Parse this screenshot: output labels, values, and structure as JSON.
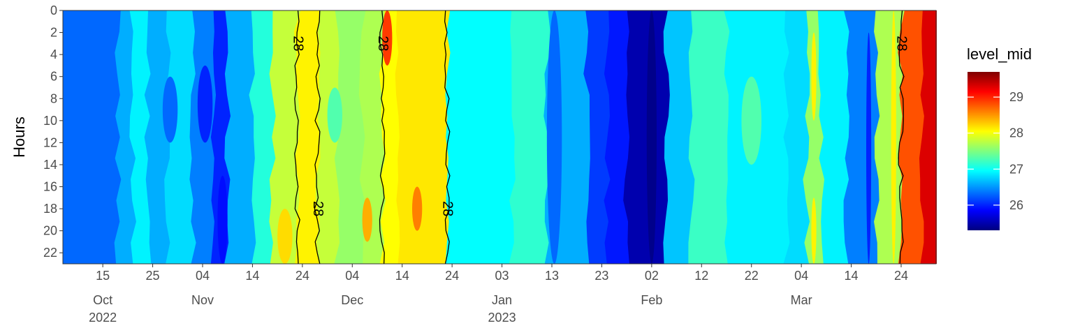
{
  "chart_data": {
    "type": "heatmap",
    "title": "",
    "xlabel": "",
    "ylabel": "Hours",
    "x_range": [
      "2022-10-07",
      "2023-03-31"
    ],
    "y_range": [
      0,
      23
    ],
    "y_reversed": true,
    "y_ticks": [
      "0",
      "2",
      "4",
      "6",
      "8",
      "10",
      "12",
      "14",
      "16",
      "18",
      "20",
      "22"
    ],
    "x_ticks": [
      {
        "date": "2022-10-15",
        "day": "15",
        "month": "Oct",
        "year": "2022"
      },
      {
        "date": "2022-10-25",
        "day": "25",
        "month": "",
        "year": ""
      },
      {
        "date": "2022-11-04",
        "day": "04",
        "month": "Nov",
        "year": ""
      },
      {
        "date": "2022-11-14",
        "day": "14",
        "month": "",
        "year": ""
      },
      {
        "date": "2022-11-24",
        "day": "24",
        "month": "",
        "year": ""
      },
      {
        "date": "2022-12-04",
        "day": "04",
        "month": "Dec",
        "year": ""
      },
      {
        "date": "2022-12-14",
        "day": "14",
        "month": "",
        "year": ""
      },
      {
        "date": "2022-12-24",
        "day": "24",
        "month": "",
        "year": ""
      },
      {
        "date": "2023-01-03",
        "day": "03",
        "month": "Jan",
        "year": "2023"
      },
      {
        "date": "2023-01-13",
        "day": "13",
        "month": "",
        "year": ""
      },
      {
        "date": "2023-01-23",
        "day": "23",
        "month": "",
        "year": ""
      },
      {
        "date": "2023-02-02",
        "day": "02",
        "month": "Feb",
        "year": ""
      },
      {
        "date": "2023-02-12",
        "day": "12",
        "month": "",
        "year": ""
      },
      {
        "date": "2023-02-22",
        "day": "22",
        "month": "",
        "year": ""
      },
      {
        "date": "2023-03-04",
        "day": "04",
        "month": "Mar",
        "year": ""
      },
      {
        "date": "2023-03-14",
        "day": "14",
        "month": "",
        "year": ""
      },
      {
        "date": "2023-03-24",
        "day": "24",
        "month": "",
        "year": ""
      }
    ],
    "legend": {
      "title": "level_mid",
      "placement": "right",
      "range": [
        25.3,
        29.7
      ],
      "ticks": [
        "26",
        "27",
        "28",
        "29"
      ],
      "colors": [
        "#00007f",
        "#0000ff",
        "#007fff",
        "#00ffff",
        "#7fff7f",
        "#ffff00",
        "#ff7f00",
        "#ff0000",
        "#7f0000"
      ]
    },
    "contour_level": "28",
    "contour_label": "28",
    "bands": [
      {
        "start": "2022-10-07",
        "end": "2022-10-18",
        "value": 26.3
      },
      {
        "start": "2022-10-18",
        "end": "2022-10-21",
        "value": 26.6
      },
      {
        "start": "2022-10-21",
        "end": "2022-10-24",
        "value": 26.9
      },
      {
        "start": "2022-10-24",
        "end": "2022-10-28",
        "value": 26.6
      },
      {
        "start": "2022-10-28",
        "end": "2022-11-02",
        "value": 26.8
      },
      {
        "start": "2022-11-02",
        "end": "2022-11-06",
        "value": 26.4
      },
      {
        "start": "2022-11-06",
        "end": "2022-11-09",
        "value": 26.0
      },
      {
        "start": "2022-11-09",
        "end": "2022-11-14",
        "value": 26.6
      },
      {
        "start": "2022-11-14",
        "end": "2022-11-18",
        "value": 27.1
      },
      {
        "start": "2022-11-18",
        "end": "2022-11-23",
        "value": 27.8
      },
      {
        "start": "2022-11-23",
        "end": "2022-11-27",
        "value": 28.1
      },
      {
        "start": "2022-11-27",
        "end": "2022-12-01",
        "value": 27.8
      },
      {
        "start": "2022-12-01",
        "end": "2022-12-06",
        "value": 27.6
      },
      {
        "start": "2022-12-06",
        "end": "2022-12-10",
        "value": 27.7
      },
      {
        "start": "2022-12-10",
        "end": "2022-12-13",
        "value": 28.05
      },
      {
        "start": "2022-12-13",
        "end": "2022-12-23",
        "value": 28.15
      },
      {
        "start": "2022-12-23",
        "end": "2023-01-05",
        "value": 26.95
      },
      {
        "start": "2023-01-05",
        "end": "2023-01-12",
        "value": 27.15
      },
      {
        "start": "2023-01-12",
        "end": "2023-01-20",
        "value": 26.6
      },
      {
        "start": "2023-01-20",
        "end": "2023-01-24",
        "value": 26.1
      },
      {
        "start": "2023-01-24",
        "end": "2023-01-28",
        "value": 25.95
      },
      {
        "start": "2023-01-28",
        "end": "2023-02-05",
        "value": 25.5
      },
      {
        "start": "2023-02-05",
        "end": "2023-02-10",
        "value": 26.7
      },
      {
        "start": "2023-02-10",
        "end": "2023-02-17",
        "value": 27.2
      },
      {
        "start": "2023-02-17",
        "end": "2023-03-01",
        "value": 26.9
      },
      {
        "start": "2023-03-01",
        "end": "2023-03-05",
        "value": 26.8
      },
      {
        "start": "2023-03-05",
        "end": "2023-03-08",
        "value": 27.6
      },
      {
        "start": "2023-03-08",
        "end": "2023-03-13",
        "value": 26.9
      },
      {
        "start": "2023-03-13",
        "end": "2023-03-19",
        "value": 26.4
      },
      {
        "start": "2023-03-19",
        "end": "2023-03-24",
        "value": 27.7
      },
      {
        "start": "2023-03-24",
        "end": "2023-03-28",
        "value": 28.8
      },
      {
        "start": "2023-03-28",
        "end": "2023-03-31",
        "value": 29.3
      }
    ],
    "patches": [
      {
        "start": "2022-12-10",
        "end": "2022-12-12",
        "h0": 0,
        "h1": 5,
        "value": 28.9
      },
      {
        "start": "2022-12-06",
        "end": "2022-12-08",
        "h0": 17,
        "h1": 21,
        "value": 28.4
      },
      {
        "start": "2022-12-16",
        "end": "2022-12-18",
        "h0": 16,
        "h1": 20,
        "value": 28.6
      },
      {
        "start": "2022-11-29",
        "end": "2022-12-02",
        "h0": 7,
        "h1": 12,
        "value": 27.3
      },
      {
        "start": "2022-11-19",
        "end": "2022-11-22",
        "h0": 18,
        "h1": 23,
        "value": 28.2
      },
      {
        "start": "2022-11-07",
        "end": "2022-11-09",
        "h0": 15,
        "h1": 23,
        "value": 25.9
      },
      {
        "start": "2022-11-03",
        "end": "2022-11-06",
        "h0": 5,
        "h1": 12,
        "value": 26.0
      },
      {
        "start": "2022-10-27",
        "end": "2022-10-30",
        "h0": 6,
        "h1": 12,
        "value": 26.3
      },
      {
        "start": "2023-03-17",
        "end": "2023-03-18",
        "h0": 2,
        "h1": 23,
        "value": 26.0
      },
      {
        "start": "2023-03-06",
        "end": "2023-03-07",
        "h0": 2,
        "h1": 10,
        "value": 28.1
      },
      {
        "start": "2023-03-06",
        "end": "2023-03-07",
        "h0": 17,
        "h1": 23,
        "value": 28.1
      },
      {
        "start": "2023-03-22",
        "end": "2023-03-23",
        "h0": 0,
        "h1": 23,
        "value": 28.1
      },
      {
        "start": "2023-02-01",
        "end": "2023-02-03",
        "h0": 0,
        "h1": 23,
        "value": 25.35
      },
      {
        "start": "2023-01-12",
        "end": "2023-01-15",
        "h0": 0,
        "h1": 23,
        "value": 26.3
      },
      {
        "start": "2023-02-20",
        "end": "2023-02-24",
        "h0": 6,
        "h1": 14,
        "value": 27.3
      }
    ]
  }
}
